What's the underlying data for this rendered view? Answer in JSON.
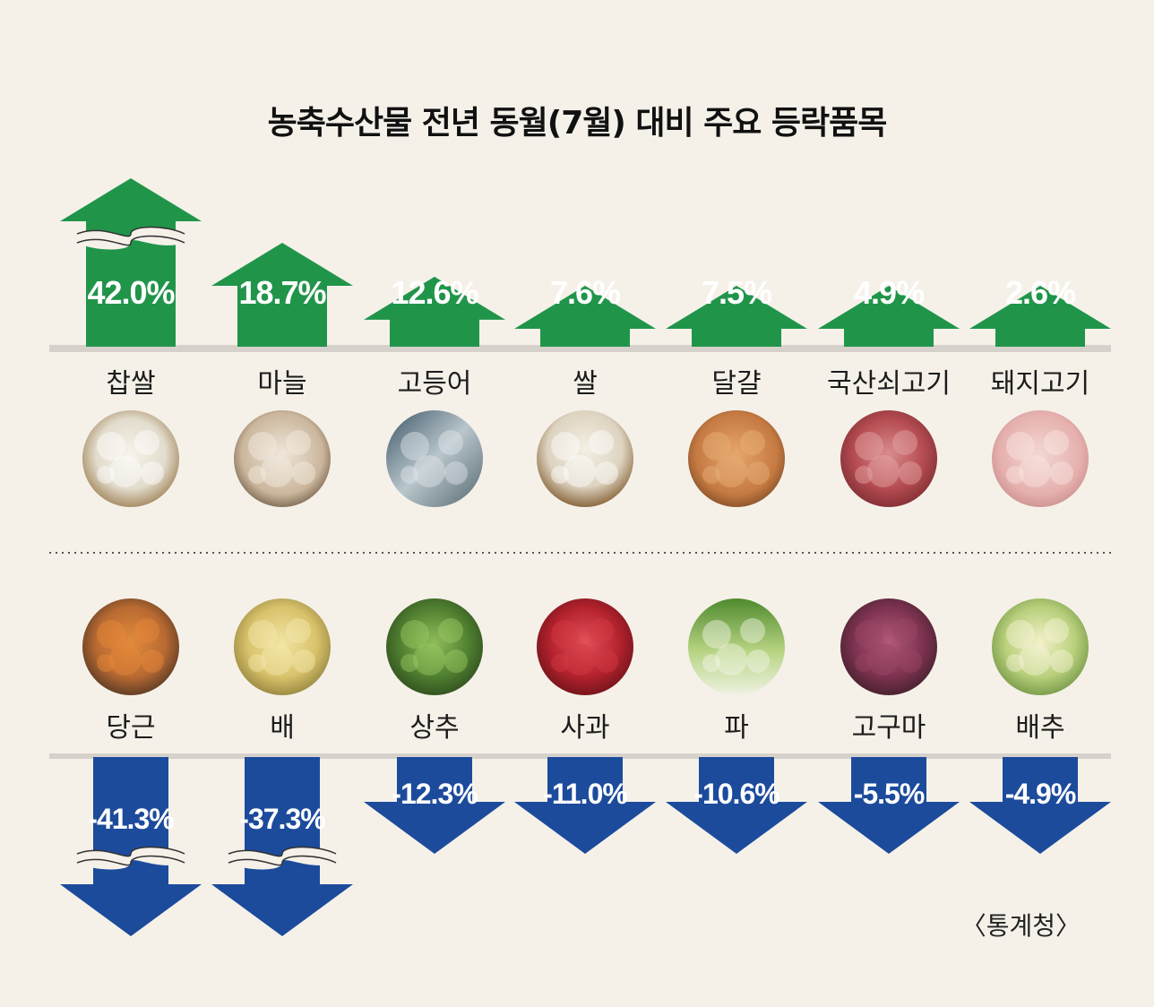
{
  "title": "농축수산물 전년 동월(7월) 대비 주요 등락품목",
  "source": "〈통계청〉",
  "colors": {
    "up": "#20954a",
    "down": "#1c4b9c",
    "background": "#f5f1e9"
  },
  "chart_data": {
    "type": "bar",
    "title": "농축수산물 전년 동월(7월) 대비 주요 등락품목",
    "unit": "%",
    "series": [
      {
        "categories": [
          "찹쌀",
          "마늘",
          "고등어",
          "쌀",
          "달걀",
          "국산쇠고기",
          "돼지고기"
        ],
        "values": [
          42.0,
          18.7,
          12.6,
          7.6,
          7.5,
          4.9,
          2.6
        ],
        "labels": [
          "42.0%",
          "18.7%",
          "12.6%",
          "7.6%",
          "7.5%",
          "4.9%",
          "2.6%"
        ],
        "images": [
          "glutinous-rice-bowl",
          "garlic",
          "mackerel",
          "rice-scoop",
          "eggs",
          "beef",
          "pork"
        ],
        "broken": [
          true,
          false,
          false,
          false,
          false,
          false,
          false
        ]
      },
      {
        "categories": [
          "당근",
          "배",
          "상추",
          "사과",
          "파",
          "고구마",
          "배추"
        ],
        "values": [
          -41.3,
          -37.3,
          -12.3,
          -11.0,
          -10.6,
          -5.5,
          -4.9
        ],
        "labels": [
          "-41.3%",
          "-37.3%",
          "-12.3%",
          "-11.0%",
          "-10.6%",
          "-5.5%",
          "-4.9%"
        ],
        "images": [
          "carrots",
          "pears",
          "lettuce",
          "apples",
          "green-onion",
          "sweet-potatoes",
          "napa-cabbage"
        ],
        "broken": [
          true,
          true,
          false,
          false,
          false,
          false,
          false
        ]
      }
    ]
  }
}
